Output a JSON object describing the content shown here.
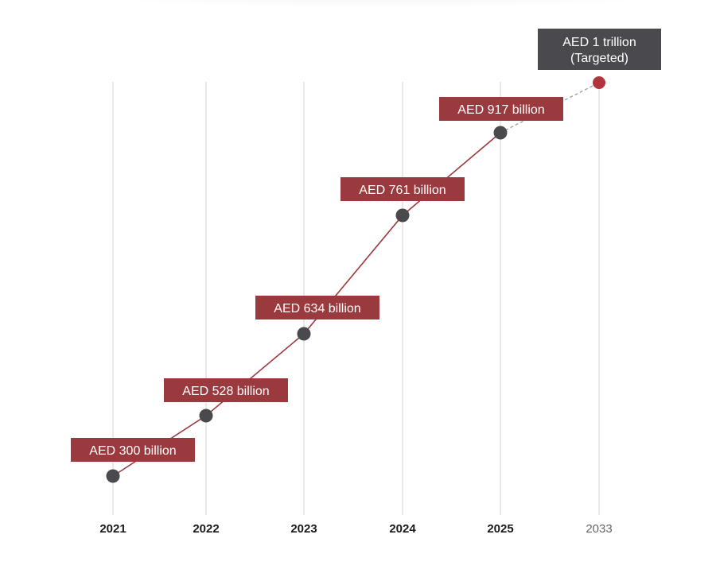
{
  "chart_data": {
    "type": "line",
    "categories": [
      "2021",
      "2022",
      "2023",
      "2024",
      "2025",
      "2033"
    ],
    "values": [
      300,
      528,
      634,
      761,
      917,
      1000
    ],
    "labels": [
      "AED 300 billion",
      "AED 528 billion",
      "AED 634 billion",
      "AED 761 billion",
      "AED 917 billion",
      "AED 1 trillion\n(Targeted)"
    ],
    "target_index": 5,
    "grid": true,
    "colors": {
      "line": "#9b3a3e",
      "label_bg": "#9b3a3e",
      "target_label_bg": "#4a4a4e",
      "point": "#4a4a4e",
      "target_point": "#b0353c",
      "dashed": "#a0a4ab",
      "gridline": "#d3d3d3",
      "tick_text": "#1a1a1a",
      "target_tick_text": "#666666"
    }
  }
}
